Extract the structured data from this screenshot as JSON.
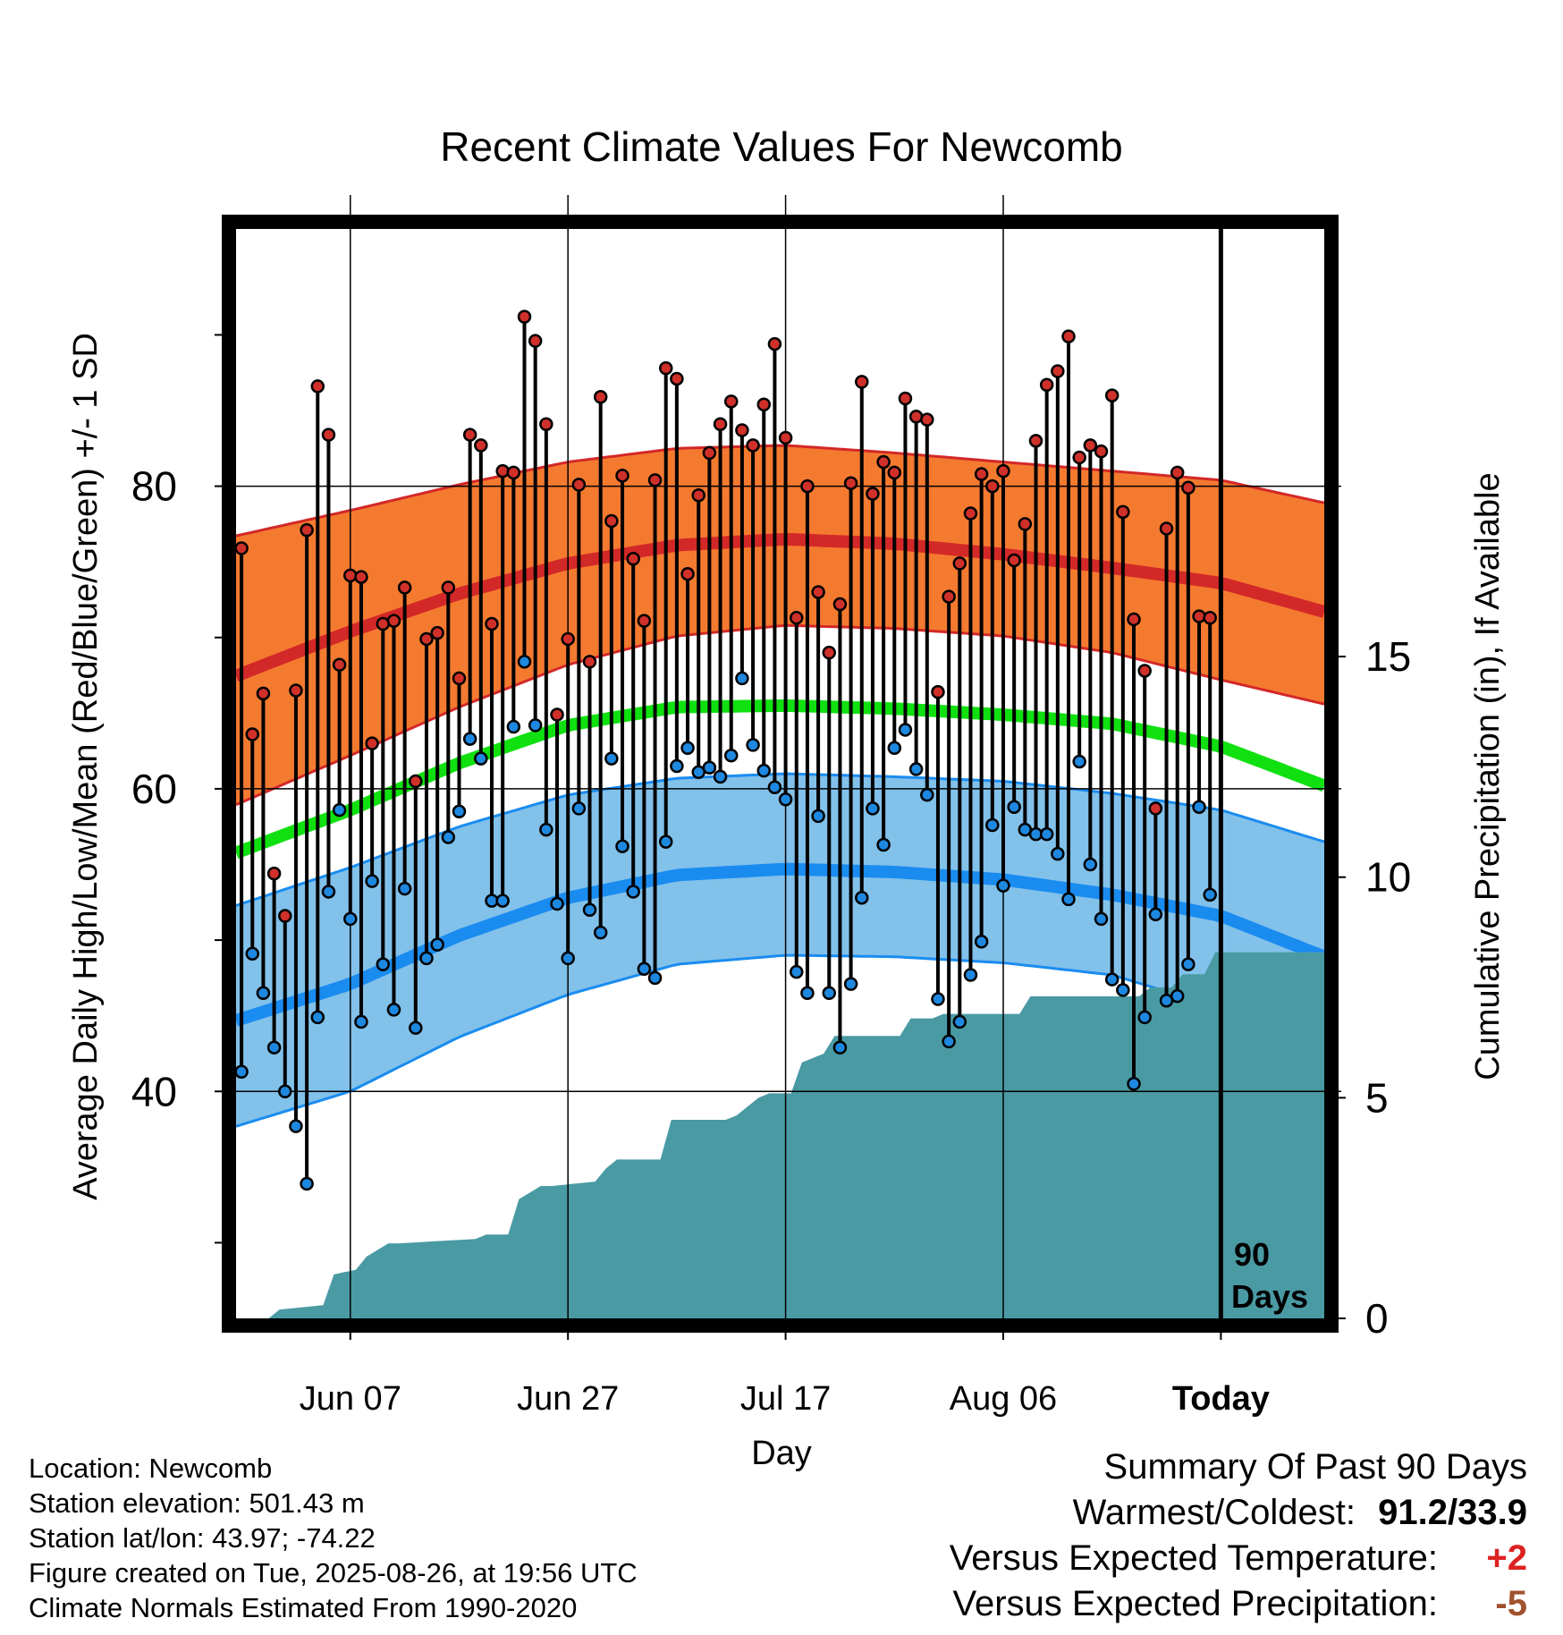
{
  "chart_data": {
    "type": "line",
    "title": "Recent Climate Values For Newcomb",
    "xlabel": "Day",
    "ylabel": "Average Daily High/Low/Mean (Red/Blue/Green) +/- 1 SD",
    "y2label": "Cumulative Precipitation (in), If Available",
    "x_tick_labels": [
      "Jun 07",
      "Jun 27",
      "Jul 17",
      "Aug 06",
      "Today"
    ],
    "x_tick_days": [
      10,
      30,
      50,
      70,
      90
    ],
    "xlim": [
      -0.5,
      99.5
    ],
    "ylim": [
      25,
      97
    ],
    "y_ticks": [
      40,
      60,
      80
    ],
    "y2lim": [
      0,
      20
    ],
    "y2_ticks": [
      0,
      5,
      10,
      15
    ],
    "grid": true,
    "today_marker_label": [
      "90",
      "Days"
    ],
    "normals": {
      "days": [
        0,
        10,
        20,
        30,
        40,
        50,
        60,
        70,
        80,
        90,
        99.5
      ],
      "high_mean": [
        67.6,
        70.4,
        72.9,
        74.9,
        76.1,
        76.5,
        76.2,
        75.5,
        74.6,
        73.6,
        71.7
      ],
      "high_sd_upper": [
        76.8,
        78.4,
        80.1,
        81.6,
        82.5,
        82.7,
        82.2,
        81.6,
        81.0,
        80.4,
        78.9
      ],
      "high_sd_lower": [
        59.1,
        62.2,
        65.4,
        68.2,
        70.1,
        70.8,
        70.6,
        70.1,
        69.0,
        67.2,
        65.6
      ],
      "mean": [
        55.9,
        58.6,
        61.7,
        64.2,
        65.4,
        65.5,
        65.3,
        64.9,
        64.3,
        62.8,
        60.2
      ],
      "low_mean": [
        44.8,
        47.1,
        50.3,
        52.8,
        54.3,
        54.7,
        54.5,
        54.0,
        53.0,
        51.6,
        48.9
      ],
      "low_sd_upper": [
        52.4,
        54.8,
        57.5,
        59.6,
        60.7,
        61.0,
        60.8,
        60.5,
        59.7,
        58.6,
        56.5
      ],
      "low_sd_lower": [
        37.8,
        40.0,
        43.6,
        46.4,
        48.4,
        49.0,
        48.9,
        48.5,
        47.7,
        45.5,
        42.2
      ]
    },
    "series": [
      {
        "name": "High",
        "values": [
          75.9,
          63.6,
          66.3,
          54.4,
          51.6,
          66.5,
          77.1,
          86.6,
          83.4,
          68.2,
          74.1,
          74.0,
          63.0,
          70.9,
          71.1,
          73.3,
          60.5,
          69.9,
          70.3,
          73.3,
          67.3,
          83.4,
          82.7,
          70.9,
          81.0,
          80.9,
          91.2,
          89.6,
          84.1,
          64.9,
          69.9,
          80.1,
          68.4,
          85.9,
          77.7,
          80.7,
          75.2,
          71.1,
          80.4,
          87.8,
          87.1,
          74.2,
          79.4,
          82.2,
          84.1,
          85.6,
          83.7,
          82.7,
          85.4,
          89.4,
          83.2,
          71.3,
          80.0,
          73.0,
          69.0,
          72.2,
          80.2,
          86.9,
          79.5,
          81.6,
          80.9,
          85.8,
          84.6,
          84.4,
          66.4,
          72.7,
          74.9,
          78.2,
          80.8,
          80.0,
          81.0,
          75.1,
          77.5,
          83.0,
          86.7,
          87.6,
          89.9,
          81.9,
          82.7,
          82.3,
          86.0,
          78.3,
          71.2,
          67.8,
          58.7,
          77.2,
          80.9,
          79.9,
          71.4,
          71.3
        ]
      },
      {
        "name": "Low",
        "values": [
          41.3,
          49.1,
          46.5,
          42.9,
          40.0,
          37.7,
          33.9,
          44.9,
          53.2,
          58.6,
          51.4,
          44.6,
          53.9,
          48.4,
          45.4,
          53.4,
          44.2,
          48.8,
          49.7,
          56.8,
          58.5,
          63.3,
          62.0,
          52.6,
          52.6,
          64.1,
          68.4,
          64.2,
          57.3,
          52.4,
          48.8,
          58.7,
          52.0,
          50.5,
          62.0,
          56.2,
          53.2,
          48.1,
          47.5,
          56.5,
          61.5,
          62.7,
          61.1,
          61.4,
          60.8,
          62.2,
          67.3,
          62.9,
          61.2,
          60.1,
          59.3,
          47.9,
          46.5,
          58.2,
          46.5,
          42.9,
          47.1,
          52.8,
          58.7,
          56.3,
          62.7,
          63.9,
          61.3,
          59.6,
          46.1,
          43.3,
          44.6,
          47.7,
          49.9,
          57.6,
          53.6,
          58.8,
          57.3,
          57.0,
          57.0,
          55.7,
          52.7,
          61.8,
          55.0,
          51.4,
          47.4,
          46.7,
          40.5,
          44.9,
          51.7,
          46.0,
          46.3,
          48.4,
          58.8,
          53.0
        ]
      },
      {
        "name": "Cumulative Precipitation",
        "x": [
          -0.5,
          2.5,
          3.5,
          7.5,
          8.5,
          10.5,
          11.5,
          13.5,
          14.5,
          21.5,
          22.5,
          24.5,
          25.5,
          27.5,
          28.5,
          32.5,
          33.5,
          34.5,
          35.5,
          38.5,
          39.5,
          44.5,
          45.5,
          47.5,
          48.5,
          50.5,
          51.5,
          53.5,
          54.5,
          60.5,
          61.5,
          63.5,
          64.5,
          71.5,
          72.5,
          82.5,
          83.5,
          85.5,
          86.5,
          88.5,
          89.5,
          99.5
        ],
        "values": [
          0,
          0,
          0.2,
          0.3,
          1.0,
          1.1,
          1.4,
          1.7,
          1.7,
          1.8,
          1.9,
          1.9,
          2.7,
          3.0,
          3.0,
          3.1,
          3.4,
          3.6,
          3.6,
          3.6,
          4.5,
          4.5,
          4.6,
          5.0,
          5.1,
          5.1,
          5.8,
          6.0,
          6.4,
          6.4,
          6.8,
          6.8,
          6.9,
          6.9,
          7.3,
          7.3,
          7.5,
          7.5,
          7.8,
          7.8,
          8.3,
          8.3
        ]
      }
    ]
  },
  "info": {
    "location": "Location: Newcomb",
    "elevation": "Station elevation: 501.43 m",
    "latlon": "Station lat/lon: 43.97; -74.22",
    "created": "Figure created on Tue, 2025-08-26, at 19:56 UTC",
    "normals": "Climate Normals Estimated From 1990-2020"
  },
  "summary": {
    "heading": "Summary Of Past 90 Days",
    "warm_cold_label": "Warmest/Coldest:",
    "warm_cold_value": "91.2/33.9",
    "temp_label": "Versus Expected Temperature:",
    "temp_value": "+2",
    "precip_label": "Versus Expected Precipitation:",
    "precip_value": "-5"
  },
  "colors": {
    "high_band": "#f47a30",
    "high_line": "#d32828",
    "mean_line": "#10e010",
    "low_band": "#82c1ea",
    "low_line": "#1a8cf0",
    "precip_fill": "#4a9aa4",
    "high_marker": "#d0302a",
    "low_marker": "#1e88e0",
    "temp_anomaly": "#dd2222",
    "precip_anomaly": "#a0522d"
  }
}
